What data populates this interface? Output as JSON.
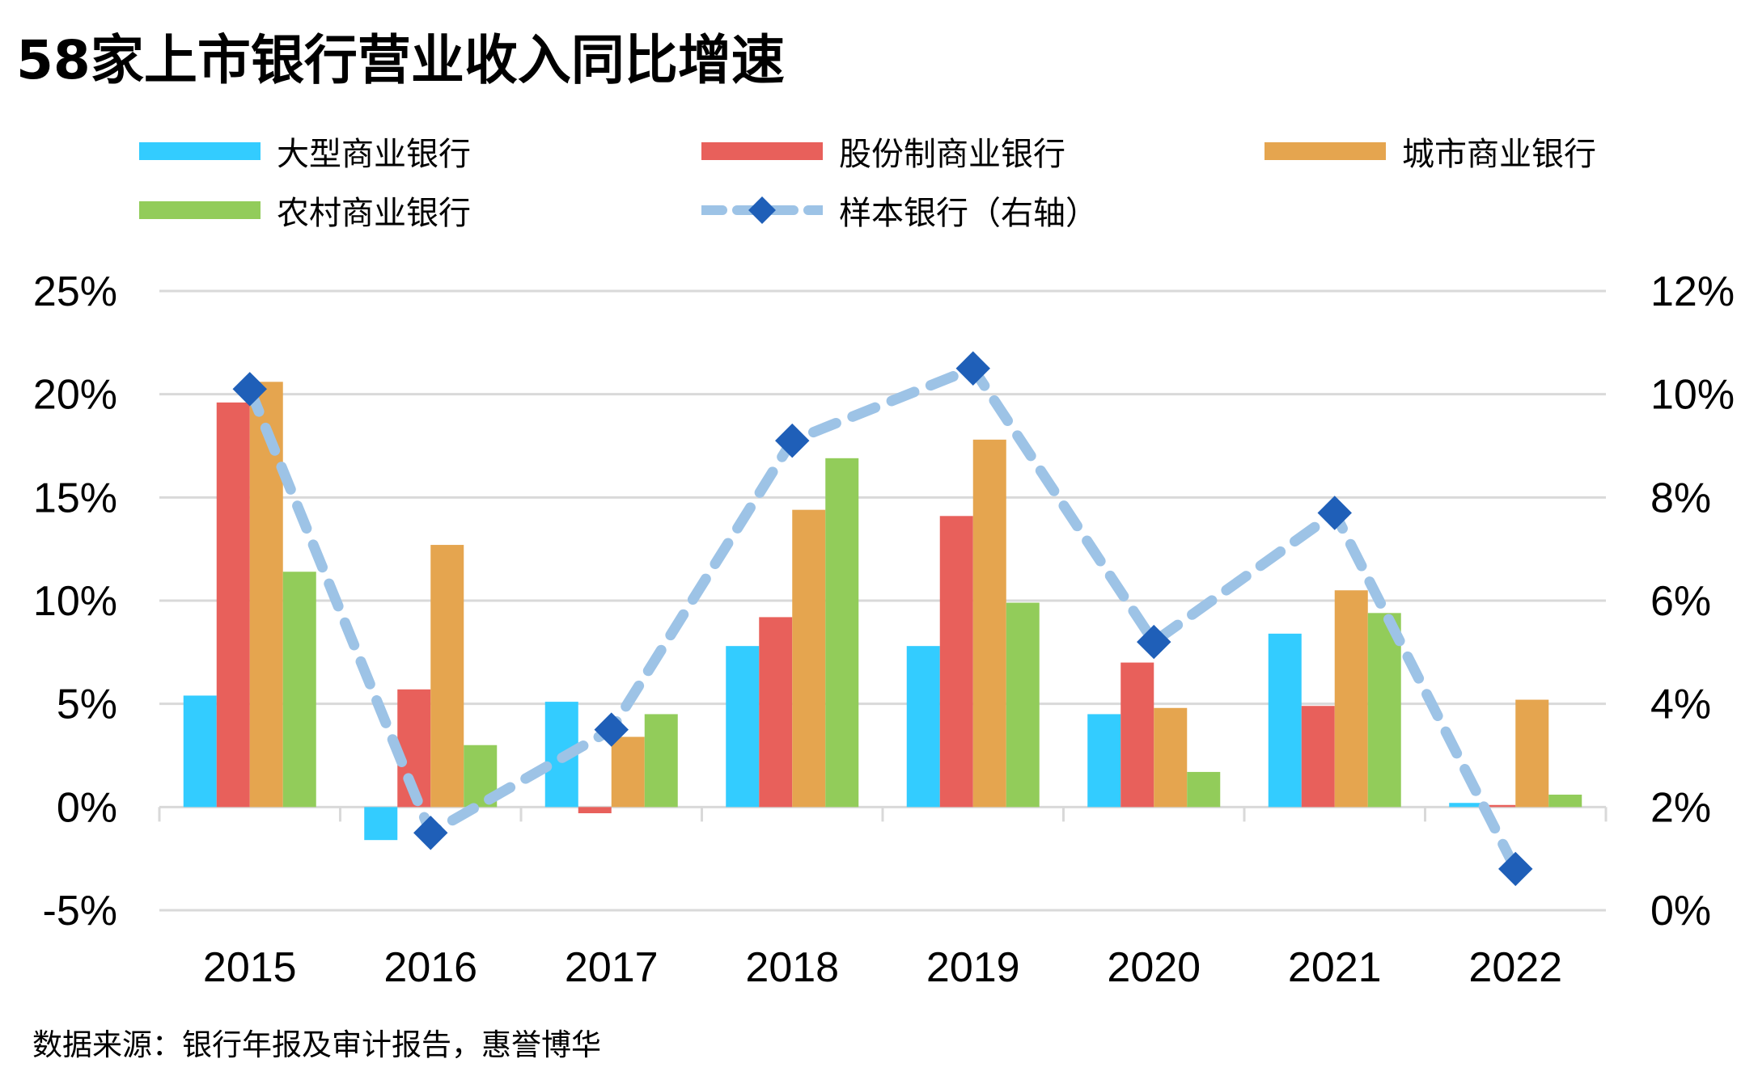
{
  "title": "58家上市银行营业收入同比增速",
  "source": "数据来源：银行年报及审计报告，惠誉博华",
  "colors": {
    "large": "#33CCFF",
    "joint": "#E8605B",
    "city": "#E5A54F",
    "rural": "#92CC5A",
    "sample_line": "#9DC3E6",
    "sample_marker": "#1F5FB8",
    "grid": "#D9D9D9"
  },
  "legend": [
    {
      "label": "大型商业银行",
      "type": "bar",
      "color": "#33CCFF"
    },
    {
      "label": "股份制商业银行",
      "type": "bar",
      "color": "#E8605B"
    },
    {
      "label": "城市商业银行",
      "type": "bar",
      "color": "#E5A54F"
    },
    {
      "label": "农村商业银行",
      "type": "bar",
      "color": "#92CC5A"
    },
    {
      "label": "样本银行（右轴）",
      "type": "line",
      "color": "#9DC3E6"
    }
  ],
  "chart_data": {
    "type": "bar",
    "categories": [
      "2015",
      "2016",
      "2017",
      "2018",
      "2019",
      "2020",
      "2021",
      "2022"
    ],
    "series": [
      {
        "name": "大型商业银行",
        "axis": "left",
        "values": [
          5.4,
          -1.6,
          5.1,
          7.8,
          7.8,
          4.5,
          8.4,
          0.2
        ]
      },
      {
        "name": "股份制商业银行",
        "axis": "left",
        "values": [
          19.6,
          5.7,
          -0.3,
          9.2,
          14.1,
          7.0,
          4.9,
          0.1
        ]
      },
      {
        "name": "城市商业银行",
        "axis": "left",
        "values": [
          20.6,
          12.7,
          3.4,
          14.4,
          17.8,
          4.8,
          10.5,
          5.2
        ]
      },
      {
        "name": "农村商业银行",
        "axis": "left",
        "values": [
          11.4,
          3.0,
          4.5,
          16.9,
          9.9,
          1.7,
          9.4,
          0.6
        ]
      },
      {
        "name": "样本银行（右轴）",
        "axis": "right",
        "type": "line",
        "values": [
          10.1,
          1.5,
          3.5,
          9.1,
          10.5,
          5.2,
          7.7,
          0.8
        ]
      }
    ],
    "y_left": {
      "min": -5,
      "max": 25,
      "ticks": [
        "25%",
        "20%",
        "15%",
        "10%",
        "5%",
        "0%",
        "-5%"
      ]
    },
    "y_right": {
      "min": 0,
      "max": 12,
      "ticks": [
        "12%",
        "10%",
        "8%",
        "6%",
        "4%",
        "2%",
        "0%"
      ]
    },
    "grid": true,
    "legend_position": "top"
  }
}
